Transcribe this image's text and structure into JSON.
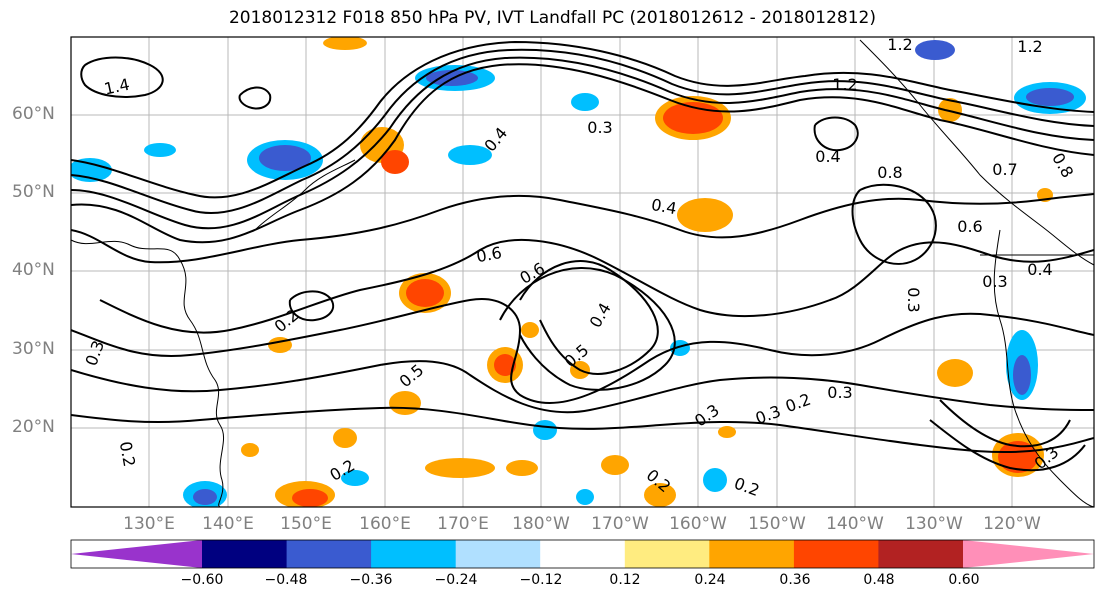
{
  "title": "2018012312 F018 850 hPa PV, IVT Landfall PC (2018012612 - 2018012812)",
  "lat_labels": [
    "60°N",
    "50°N",
    "40°N",
    "30°N",
    "20°N"
  ],
  "lon_labels": [
    "130°E",
    "140°E",
    "150°E",
    "160°E",
    "170°E",
    "180°W",
    "170°W",
    "160°W",
    "150°W",
    "140°W",
    "130°W",
    "120°W"
  ],
  "contour_labels": [
    "1.4",
    "1.2",
    "1.2",
    "1.2",
    "0.8",
    "0.8",
    "0.7",
    "0.6",
    "0.6",
    "0.5",
    "0.5",
    "0.4",
    "0.4",
    "0.4",
    "0.4",
    "0.3",
    "0.3",
    "0.3",
    "0.3",
    "0.3",
    "0.3",
    "0.3",
    "0.2",
    "0.2",
    "0.2",
    "0.2",
    "0.2",
    "0.2",
    "0.6",
    "0.4",
    "0.3"
  ],
  "colorbar": {
    "ticks": [
      "−0.60",
      "−0.48",
      "−0.36",
      "−0.24",
      "−0.12",
      "0.12",
      "0.24",
      "0.36",
      "0.48",
      "0.60"
    ],
    "colors": [
      "#9933cc",
      "#000080",
      "#3a5bd0",
      "#00bfff",
      "#b0e0ff",
      "#ffffff",
      "#ffec80",
      "#ffa500",
      "#ff4500",
      "#b22222",
      "#ff8fb8"
    ]
  }
}
